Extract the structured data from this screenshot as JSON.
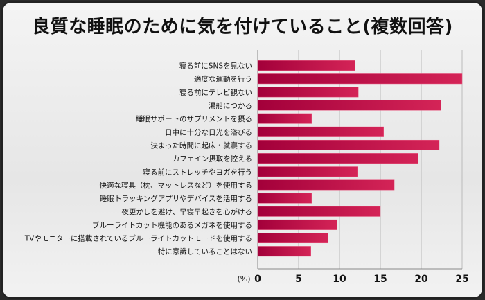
{
  "chart_data": {
    "type": "bar",
    "orientation": "horizontal",
    "title": "良質な睡眠のために気を付けていること(複数回答)",
    "unit_label": "(%)",
    "categories": [
      "寝る前にSNSを見ない",
      "適度な運動を行う",
      "寝る前にテレビ観ない",
      "湯船につかる",
      "睡眠サポートのサプリメントを摂る",
      "日中に十分な日光を浴びる",
      "決まった時間に起床・就寝する",
      "カフェイン摂取を控える",
      "寝る前にストレッチやヨガを行う",
      "快適な寝具（枕、マットレスなど）を使用する",
      "睡眠トラッキングアプリやデバイスを活用する",
      "夜更かしを避け、早寝早起きを心がける",
      "ブルーライトカット機能のあるメガネを使用する",
      "TVやモニターに搭載されているブルーライトカットモードを使用する",
      "特に意識していることはない"
    ],
    "values": [
      11.9,
      25.0,
      12.3,
      22.4,
      6.6,
      15.4,
      22.2,
      19.6,
      12.2,
      16.7,
      6.6,
      15.0,
      9.7,
      8.6,
      6.5
    ],
    "xlim": [
      0,
      25
    ],
    "xticks": [
      "0",
      "5",
      "10",
      "15",
      "20",
      "25"
    ],
    "grid": true,
    "bar_color_start": "#a3003a",
    "bar_color_end": "#d42457"
  }
}
